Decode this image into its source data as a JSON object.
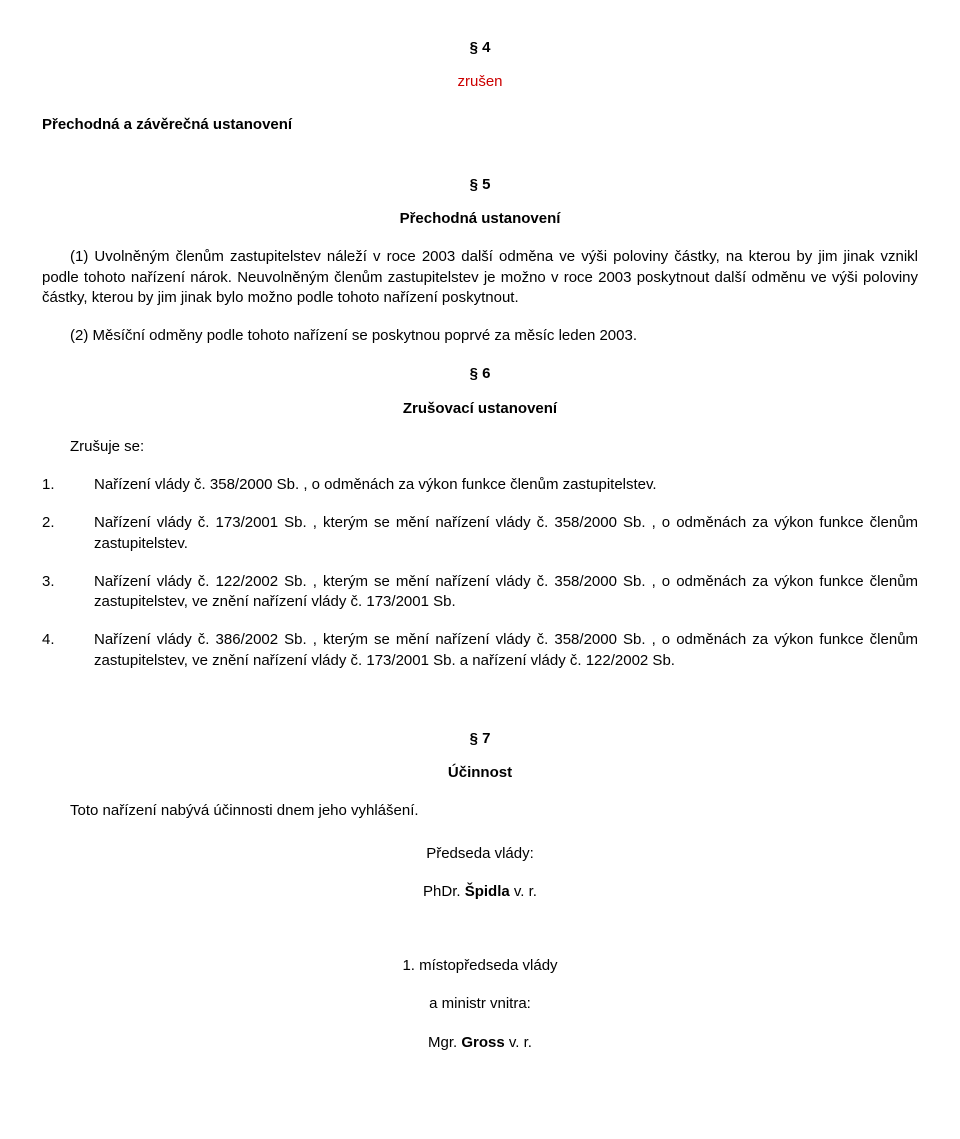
{
  "colors": {
    "text": "#000000",
    "accent_red": "#cc0000",
    "background": "#ffffff"
  },
  "typography": {
    "font_family": "Arial, Helvetica, sans-serif",
    "base_size_pt": 11,
    "line_height": 1.35
  },
  "s4": {
    "num": "§ 4",
    "status": "zrušen"
  },
  "transitional_heading": "Přechodná a závěrečná ustanovení",
  "s5": {
    "num": "§ 5",
    "title": "Přechodná ustanovení",
    "para1": "(1) Uvolněným členům zastupitelstev náleží v roce 2003 další odměna ve výši poloviny částky, na kterou by jim jinak vznikl podle tohoto nařízení nárok. Neuvolněným členům zastupitelstev je možno v roce 2003 poskytnout další odměnu ve výši poloviny částky, kterou by jim jinak bylo možno podle tohoto nařízení poskytnout.",
    "para2": "(2) Měsíční odměny podle tohoto nařízení se poskytnou poprvé za měsíc leden 2003."
  },
  "s6": {
    "num": "§ 6",
    "title": "Zrušovací ustanovení",
    "intro": "Zrušuje se:",
    "items": [
      {
        "n": "1.",
        "text_before": "Nařízení vlády č.",
        "ref": "358/2000 Sb.",
        "text_after": ", o odměnách za výkon funkce členům zastupitelstev."
      },
      {
        "n": "2.",
        "text_before": "Nařízení vlády č.",
        "ref": "173/2001 Sb.",
        "mid": ", kterým se mění nařízení vlády č.",
        "ref2": "358/2000 Sb.",
        "text_after": ", o odměnách za výkon funkce členům zastupitelstev."
      },
      {
        "n": "3.",
        "text_before": "Nařízení vlády č.",
        "ref": "122/2002 Sb.",
        "mid": ", kterým se mění nařízení vlády č.",
        "ref2": "358/2000 Sb.",
        "mid2": ", o odměnách za výkon funkce členům zastupitelstev, ve znění nařízení vlády č.",
        "ref3": "173/2001 Sb."
      },
      {
        "n": "4.",
        "text_before": "Nařízení vlády č.",
        "ref": "386/2002 Sb.",
        "mid": ", kterým se mění nařízení vlády č.",
        "ref2": "358/2000 Sb.",
        "mid2": ", o odměnách za výkon funkce členům zastupitelstev, ve znění nařízení vlády č.",
        "ref3": "173/2001 Sb.",
        "mid3": "a nařízení vlády č.",
        "ref4": "122/2002 Sb."
      }
    ]
  },
  "s7": {
    "num": "§ 7",
    "title": "Účinnost",
    "para": "Toto nařízení nabývá účinnosti dnem jeho vyhlášení."
  },
  "signatures": {
    "pm_label": "Předseda vlády:",
    "pm_name_prefix": "PhDr.",
    "pm_name_bold": "Špidla",
    "pm_name_suffix": "v. r.",
    "deputy_label": "1. místopředseda vlády",
    "minister_label": "a ministr vnitra:",
    "min_name_prefix": "Mgr.",
    "min_name_bold": "Gross",
    "min_name_suffix": "v. r."
  }
}
